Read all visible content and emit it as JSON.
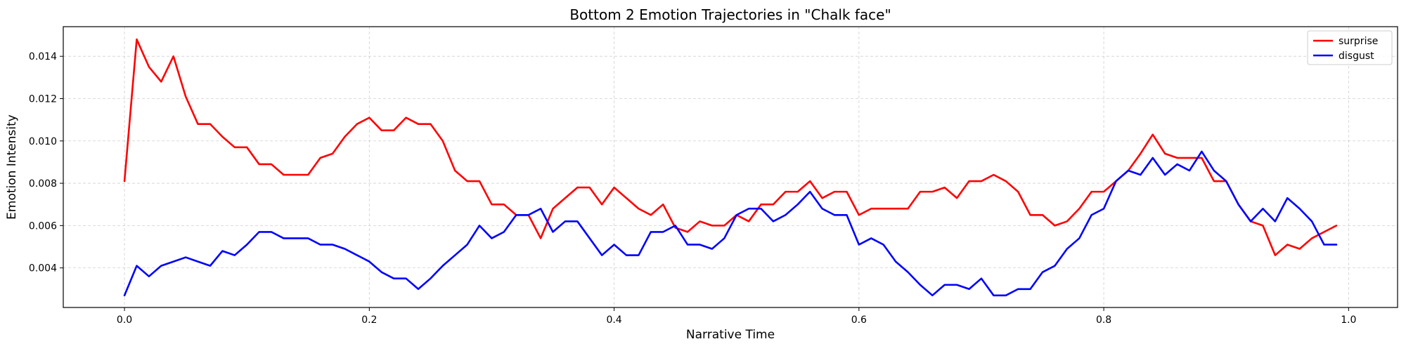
{
  "chart_data": {
    "type": "line",
    "title": "Bottom 2 Emotion Trajectories in \"Chalk face\"",
    "xlabel": "Narrative Time",
    "ylabel": "Emotion Intensity",
    "xlim": [
      -0.05,
      1.04
    ],
    "ylim": [
      0.00213,
      0.0154
    ],
    "xticks": [
      0.0,
      0.2,
      0.4,
      0.6,
      0.8,
      1.0
    ],
    "xtick_labels": [
      "0.0",
      "0.2",
      "0.4",
      "0.6",
      "0.8",
      "1.0"
    ],
    "yticks": [
      0.004,
      0.006,
      0.008,
      0.01,
      0.012,
      0.014
    ],
    "ytick_labels": [
      "0.004",
      "0.006",
      "0.008",
      "0.010",
      "0.012",
      "0.014"
    ],
    "grid": true,
    "legend": "top-right",
    "x": [
      0.0,
      0.01,
      0.02,
      0.03,
      0.04,
      0.05,
      0.06,
      0.07,
      0.08,
      0.09,
      0.1,
      0.11,
      0.12,
      0.13,
      0.14,
      0.15,
      0.16,
      0.17,
      0.18,
      0.19,
      0.2,
      0.21,
      0.22,
      0.23,
      0.24,
      0.25,
      0.26,
      0.27,
      0.28,
      0.29,
      0.3,
      0.31,
      0.32,
      0.33,
      0.34,
      0.35,
      0.36,
      0.37,
      0.38,
      0.39,
      0.4,
      0.41,
      0.42,
      0.43,
      0.44,
      0.45,
      0.46,
      0.47,
      0.48,
      0.49,
      0.5,
      0.51,
      0.52,
      0.53,
      0.54,
      0.55,
      0.56,
      0.57,
      0.58,
      0.59,
      0.6,
      0.61,
      0.62,
      0.63,
      0.64,
      0.65,
      0.66,
      0.67,
      0.68,
      0.69,
      0.7,
      0.71,
      0.72,
      0.73,
      0.74,
      0.75,
      0.76,
      0.77,
      0.78,
      0.79,
      0.8,
      0.81,
      0.82,
      0.83,
      0.84,
      0.85,
      0.86,
      0.87,
      0.88,
      0.89,
      0.9,
      0.91,
      0.92,
      0.93,
      0.94,
      0.95,
      0.96,
      0.97,
      0.98,
      0.99
    ],
    "series": [
      {
        "name": "surprise",
        "color": "#ff0000",
        "values": [
          0.0081,
          0.0148,
          0.0135,
          0.0128,
          0.014,
          0.0121,
          0.0108,
          0.0108,
          0.0102,
          0.0097,
          0.0097,
          0.0089,
          0.0089,
          0.0084,
          0.0084,
          0.0084,
          0.0092,
          0.0094,
          0.0102,
          0.0108,
          0.0111,
          0.0105,
          0.0105,
          0.0111,
          0.0108,
          0.0108,
          0.01,
          0.0086,
          0.0081,
          0.0081,
          0.007,
          0.007,
          0.0065,
          0.0065,
          0.0054,
          0.0068,
          0.0073,
          0.0078,
          0.0078,
          0.007,
          0.0078,
          0.0073,
          0.0068,
          0.0065,
          0.007,
          0.0059,
          0.0057,
          0.0062,
          0.006,
          0.006,
          0.0065,
          0.0062,
          0.007,
          0.007,
          0.0076,
          0.0076,
          0.0081,
          0.0073,
          0.0076,
          0.0076,
          0.0065,
          0.0068,
          0.0068,
          0.0068,
          0.0068,
          0.0076,
          0.0076,
          0.0078,
          0.0073,
          0.0081,
          0.0081,
          0.0084,
          0.0081,
          0.0076,
          0.0065,
          0.0065,
          0.006,
          0.0062,
          0.0068,
          0.0076,
          0.0076,
          0.0081,
          0.0086,
          0.0094,
          0.0103,
          0.0094,
          0.0092,
          0.0092,
          0.0092,
          0.0081,
          0.0081,
          0.007,
          0.0062,
          0.006,
          0.0046,
          0.0051,
          0.0049,
          0.0054,
          0.0057,
          0.006
        ]
      },
      {
        "name": "disgust",
        "color": "#0000ff",
        "values": [
          0.0027,
          0.0041,
          0.0036,
          0.0041,
          0.0043,
          0.0045,
          0.0043,
          0.0041,
          0.0048,
          0.0046,
          0.0051,
          0.0057,
          0.0057,
          0.0054,
          0.0054,
          0.0054,
          0.0051,
          0.0051,
          0.0049,
          0.0046,
          0.0043,
          0.0038,
          0.0035,
          0.0035,
          0.003,
          0.0035,
          0.0041,
          0.0046,
          0.0051,
          0.006,
          0.0054,
          0.0057,
          0.0065,
          0.0065,
          0.0068,
          0.0057,
          0.0062,
          0.0062,
          0.0054,
          0.0046,
          0.0051,
          0.0046,
          0.0046,
          0.0057,
          0.0057,
          0.006,
          0.0051,
          0.0051,
          0.0049,
          0.0054,
          0.0065,
          0.0068,
          0.0068,
          0.0062,
          0.0065,
          0.007,
          0.0076,
          0.0068,
          0.0065,
          0.0065,
          0.0051,
          0.0054,
          0.0051,
          0.0043,
          0.0038,
          0.0032,
          0.0027,
          0.0032,
          0.0032,
          0.003,
          0.0035,
          0.0027,
          0.0027,
          0.003,
          0.003,
          0.0038,
          0.0041,
          0.0049,
          0.0054,
          0.0065,
          0.0068,
          0.0081,
          0.0086,
          0.0084,
          0.0092,
          0.0084,
          0.0089,
          0.0086,
          0.0095,
          0.0086,
          0.0081,
          0.007,
          0.0062,
          0.0068,
          0.0062,
          0.0073,
          0.0068,
          0.0062,
          0.0051,
          0.0051
        ]
      }
    ]
  }
}
